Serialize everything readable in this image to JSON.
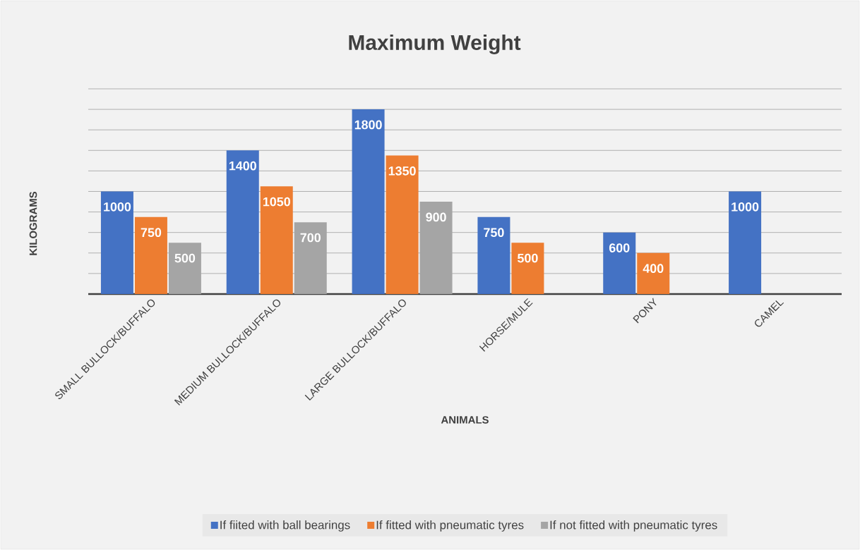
{
  "chart_data": {
    "type": "bar",
    "title": "Maximum Weight",
    "xlabel": "ANIMALS",
    "ylabel": "KILOGRAMS",
    "categories": [
      "SMALL BULLOCK/BUFFALO",
      "MEDIUM BULLOCK/BUFFALO",
      "LARGE BULLOCK/BUFFALO",
      "HORSE/MULE",
      "PONY",
      "CAMEL"
    ],
    "series": [
      {
        "name": "If fiited with ball bearings",
        "color": "#4472c4",
        "values": [
          1000,
          1400,
          1800,
          750,
          600,
          1000
        ]
      },
      {
        "name": "If fitted with pneumatic tyres",
        "color": "#ed7d31",
        "values": [
          750,
          1050,
          1350,
          500,
          400,
          null
        ]
      },
      {
        "name": "If not fitted with pneumatic tyres",
        "color": "#a5a5a5",
        "values": [
          500,
          700,
          900,
          null,
          null,
          null
        ]
      }
    ],
    "ylim": [
      0,
      2000
    ],
    "yticks": [
      {
        "value": 0,
        "label": null
      },
      {
        "value": 200,
        "label": null
      },
      {
        "value": 400,
        "label": null
      },
      {
        "value": 600,
        "label": null
      },
      {
        "value": 800,
        "label": null
      },
      {
        "value": 1000,
        "label": null
      },
      {
        "value": 1200,
        "label": null
      },
      {
        "value": 1400,
        "label": null
      },
      {
        "value": 1600,
        "label": null
      },
      {
        "value": 1800,
        "label": null
      },
      {
        "value": 2000,
        "label": null
      }
    ],
    "tick_labels": "x",
    "grid": "y",
    "legend": "bottom",
    "data_labels": true
  }
}
